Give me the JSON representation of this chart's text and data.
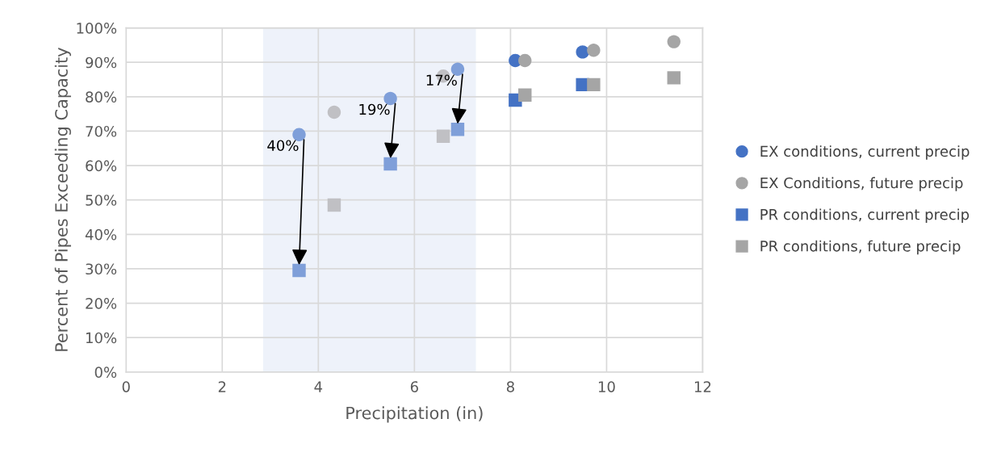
{
  "chart_data": {
    "type": "scatter",
    "xlabel": "Precipitation (in)",
    "ylabel": "Percent of Pipes Exceeding Capacity",
    "xlim": [
      0,
      12
    ],
    "xticks": [
      0,
      2,
      4,
      6,
      8,
      10,
      12
    ],
    "ylim": [
      0,
      100
    ],
    "yticks": [
      {
        "value": 0,
        "label": "0%"
      },
      {
        "value": 10,
        "label": "10%"
      },
      {
        "value": 20,
        "label": "20%"
      },
      {
        "value": 30,
        "label": "30%"
      },
      {
        "value": 40,
        "label": "40%"
      },
      {
        "value": 50,
        "label": "50%"
      },
      {
        "value": 60,
        "label": "60%"
      },
      {
        "value": 70,
        "label": "70%"
      },
      {
        "value": 80,
        "label": "80%"
      },
      {
        "value": 90,
        "label": "90%"
      },
      {
        "value": 100,
        "label": "100%"
      }
    ],
    "grid": true,
    "legend": "right",
    "bands": [
      {
        "axis": "x",
        "from": 2.85,
        "to": 7.28,
        "color": "#eef2fa"
      }
    ],
    "series": [
      {
        "name": "EX conditions, current precip",
        "color": "#4472c4",
        "marker": "circle",
        "x": [
          3.6,
          5.5,
          6.9,
          8.1,
          9.5
        ],
        "values": [
          69,
          79.5,
          88,
          90.5,
          93
        ],
        "colors": [
          "#7f9fd9",
          "#7f9fd9",
          "#7f9fd9",
          "#4472c4",
          "#4472c4"
        ]
      },
      {
        "name": "EX Conditions, future precip",
        "color": "#a5a5a5",
        "marker": "circle",
        "x": [
          4.33,
          6.6,
          8.3,
          9.73,
          11.4
        ],
        "values": [
          75.5,
          86,
          90.5,
          93.5,
          96
        ],
        "colors": [
          "#c0c0c4",
          "#c0c0c4",
          "#a5a5a5",
          "#a5a5a5",
          "#a5a5a5"
        ]
      },
      {
        "name": "PR conditions, current precip",
        "color": "#4472c4",
        "marker": "square",
        "x": [
          3.6,
          5.5,
          6.9,
          8.1,
          9.5
        ],
        "values": [
          29.5,
          60.5,
          70.5,
          79,
          83.5
        ],
        "colors": [
          "#7f9fd9",
          "#7f9fd9",
          "#7f9fd9",
          "#4472c4",
          "#4472c4"
        ]
      },
      {
        "name": "PR conditions, future precip",
        "color": "#a5a5a5",
        "marker": "square",
        "x": [
          4.33,
          6.6,
          8.3,
          9.73,
          11.4
        ],
        "values": [
          48.5,
          68.5,
          80.5,
          83.5,
          85.5
        ],
        "colors": [
          "#c0c0c4",
          "#c0c0c4",
          "#a5a5a5",
          "#a5a5a5",
          "#a5a5a5"
        ]
      }
    ],
    "annotations": [
      {
        "text": "40%",
        "x": 3.6,
        "y": 29.5
      },
      {
        "text": "19%",
        "x": 5.5,
        "y": 60.5
      },
      {
        "text": "17%",
        "x": 6.9,
        "y": 70.5
      }
    ]
  }
}
